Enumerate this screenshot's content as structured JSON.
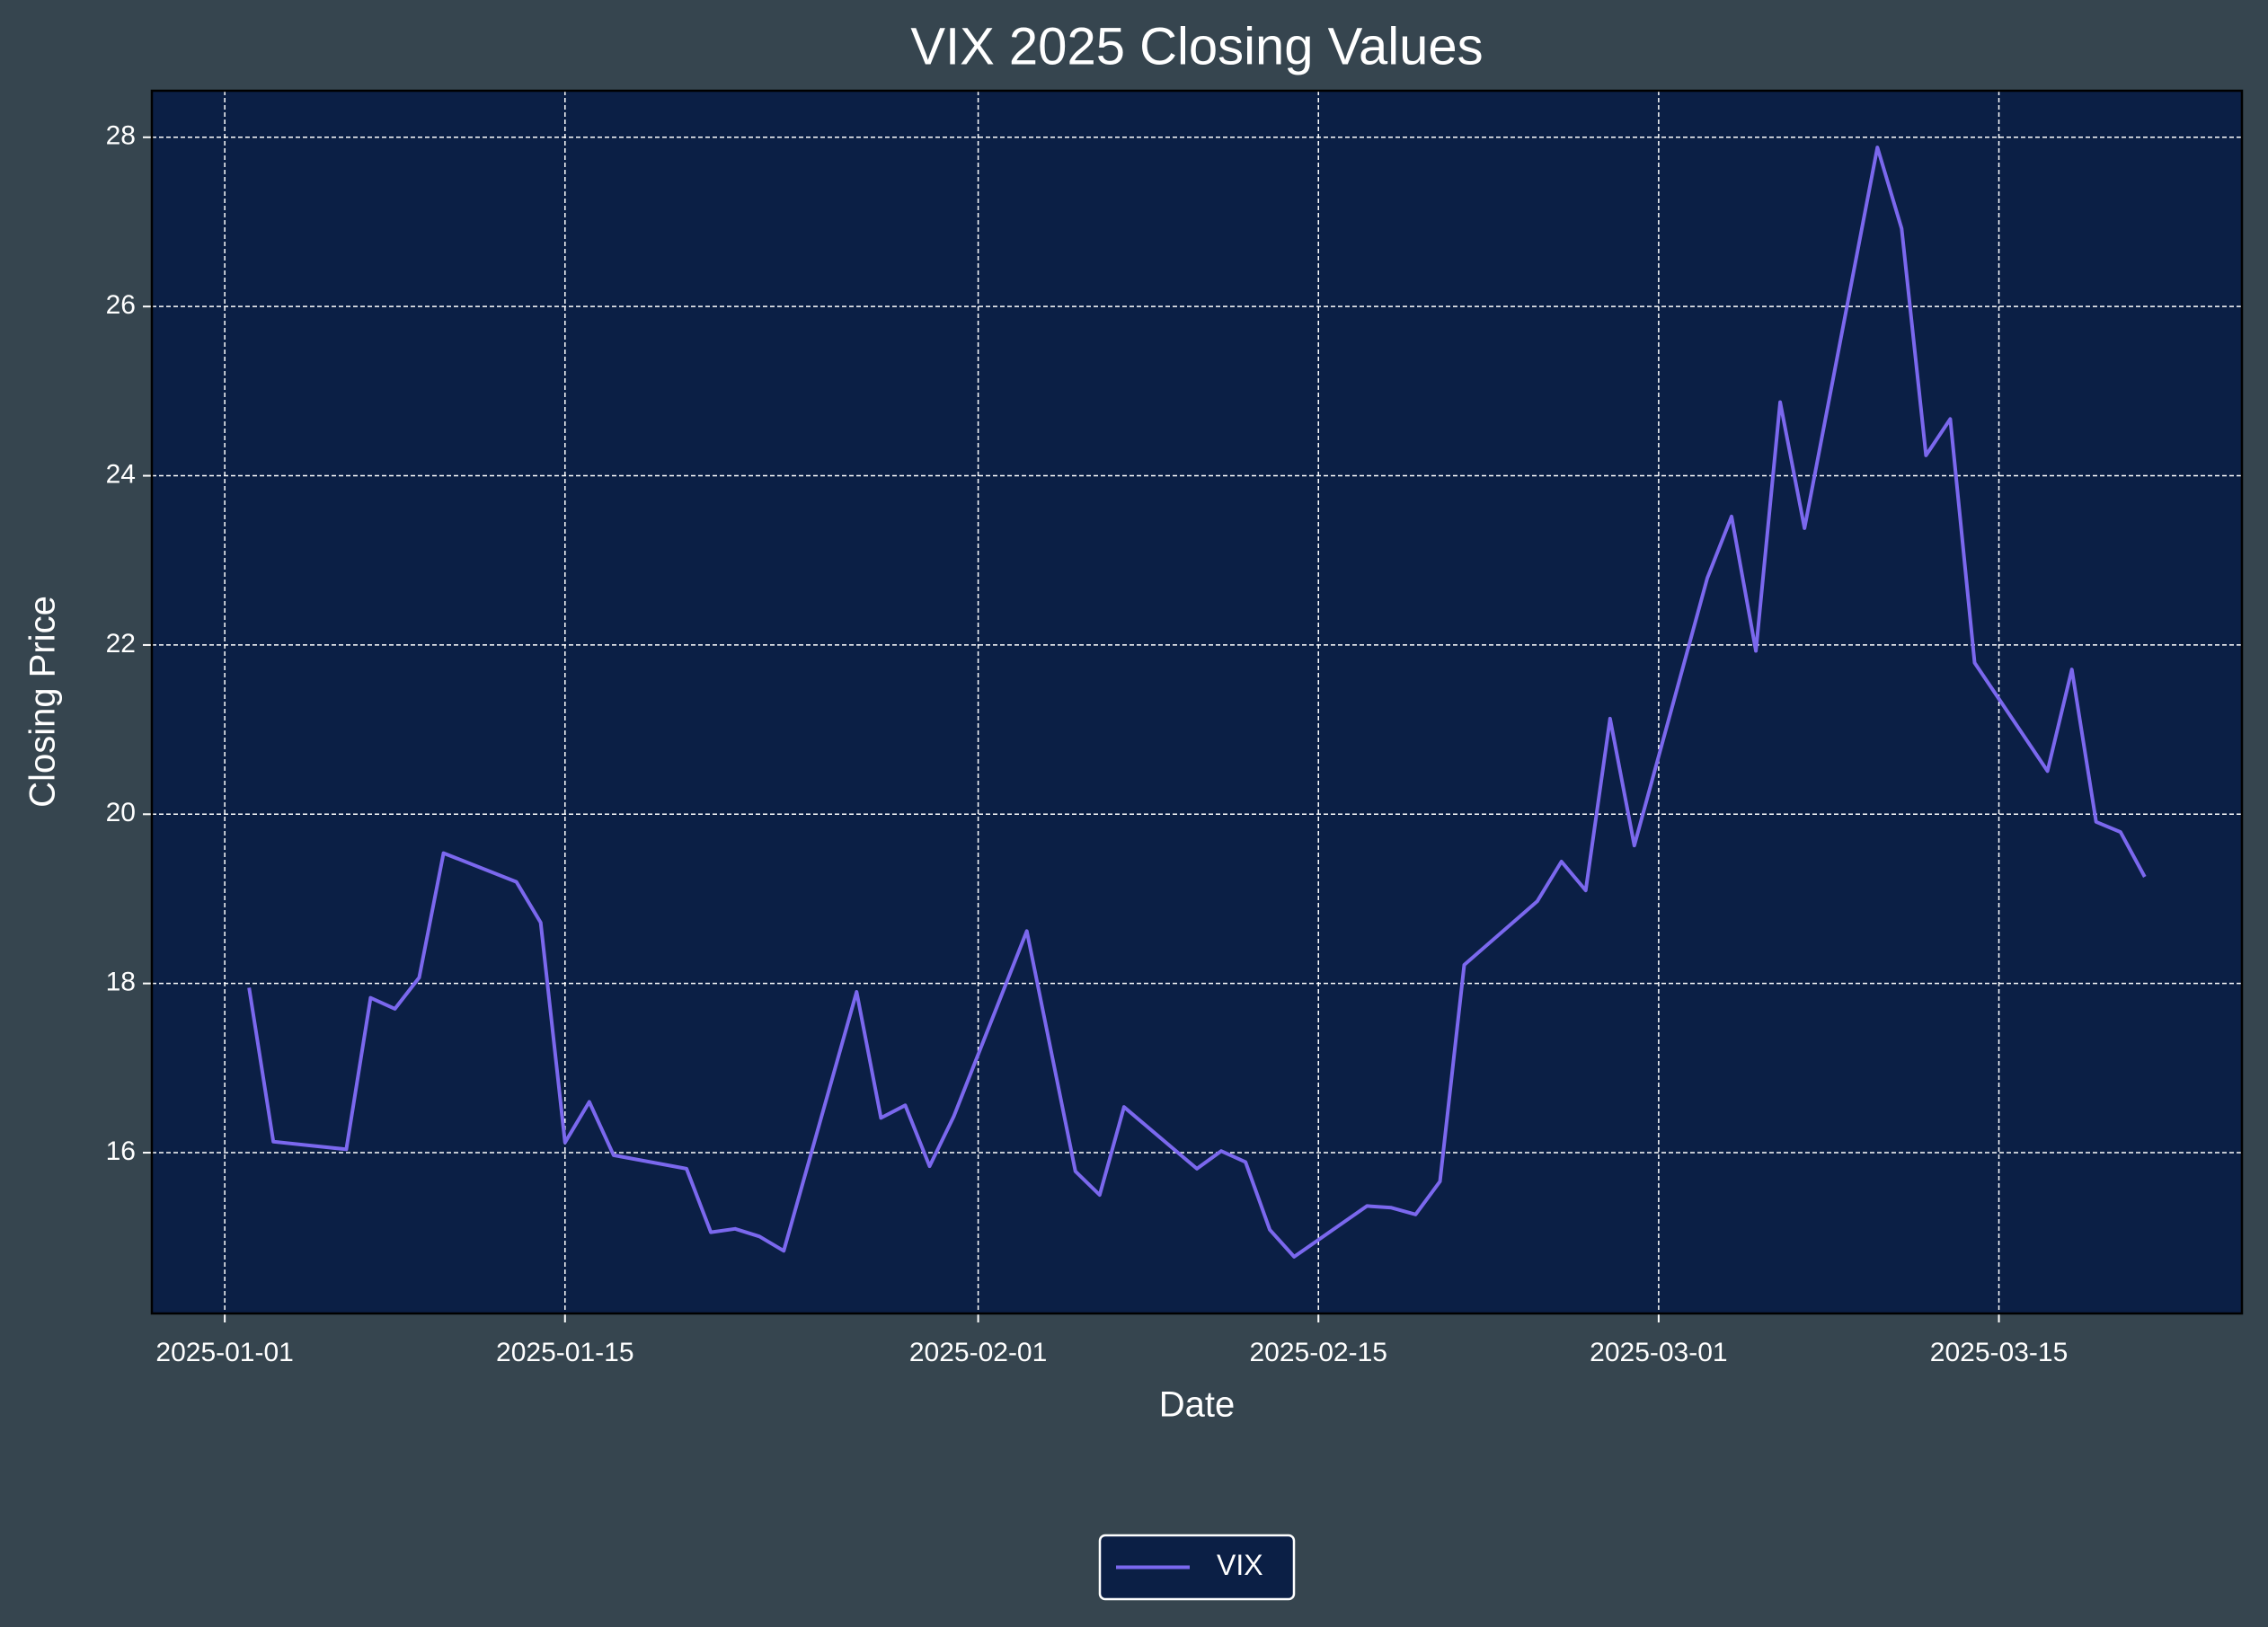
{
  "chart_data": {
    "type": "line",
    "title": "VIX 2025 Closing Values",
    "x_label": "Date",
    "y_label": "Closing Price",
    "x": [
      "2025-01-02",
      "2025-01-03",
      "2025-01-06",
      "2025-01-07",
      "2025-01-08",
      "2025-01-09",
      "2025-01-10",
      "2025-01-13",
      "2025-01-14",
      "2025-01-15",
      "2025-01-16",
      "2025-01-17",
      "2025-01-20",
      "2025-01-21",
      "2025-01-22",
      "2025-01-23",
      "2025-01-24",
      "2025-01-27",
      "2025-01-28",
      "2025-01-29",
      "2025-01-30",
      "2025-01-31",
      "2025-02-03",
      "2025-02-05",
      "2025-02-06",
      "2025-02-07",
      "2025-02-10",
      "2025-02-11",
      "2025-02-12",
      "2025-02-13",
      "2025-02-14",
      "2025-02-17",
      "2025-02-18",
      "2025-02-19",
      "2025-02-20",
      "2025-02-21",
      "2025-02-24",
      "2025-02-25",
      "2025-02-26",
      "2025-02-27",
      "2025-02-28",
      "2025-03-03",
      "2025-03-04",
      "2025-03-05",
      "2025-03-06",
      "2025-03-07",
      "2025-03-10",
      "2025-03-11",
      "2025-03-12",
      "2025-03-13",
      "2025-03-14",
      "2025-03-17",
      "2025-03-18",
      "2025-03-19",
      "2025-03-20",
      "2025-03-21"
    ],
    "series": [
      {
        "name": "VIX",
        "color": "#7b68ee",
        "values": [
          17.95,
          16.13,
          16.04,
          17.83,
          17.7,
          18.07,
          19.54,
          19.2,
          18.72,
          16.12,
          16.6,
          15.97,
          15.81,
          15.06,
          15.1,
          15.01,
          14.84,
          17.9,
          16.41,
          16.56,
          15.84,
          16.43,
          18.62,
          15.78,
          15.5,
          16.54,
          15.81,
          16.02,
          15.89,
          15.09,
          14.77,
          15.37,
          15.35,
          15.27,
          15.66,
          18.22,
          18.97,
          19.44,
          19.1,
          21.13,
          19.63,
          22.79,
          23.52,
          21.93,
          24.87,
          23.38,
          27.88,
          26.92,
          24.24,
          24.67,
          21.79,
          20.51,
          21.71,
          19.91,
          19.79,
          19.26
        ]
      }
    ],
    "xlim": [
      "2024-12-29",
      "2025-03-25"
    ],
    "xticks": [
      "2025-01-01",
      "2025-01-15",
      "2025-02-01",
      "2025-02-15",
      "2025-03-01",
      "2025-03-15"
    ],
    "ylim": [
      14.1,
      28.55
    ],
    "yticks": [
      16,
      18,
      20,
      22,
      24,
      26,
      28
    ],
    "grid": true,
    "legend": "bottom",
    "background": "#36454f",
    "plot_background": "#0b1f45"
  }
}
